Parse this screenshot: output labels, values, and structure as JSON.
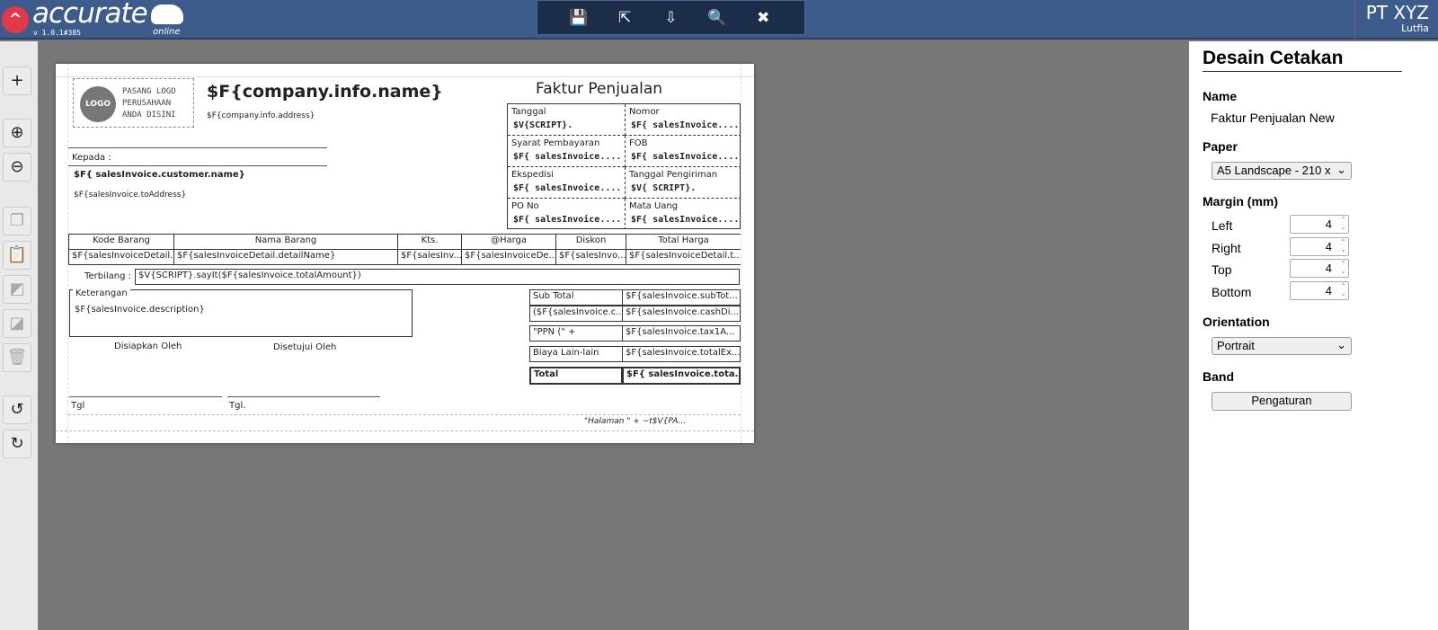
{
  "app": {
    "brand": "accurate",
    "version": "v 1.0.1#385",
    "online": "online",
    "company": "PT XYZ",
    "user": "Lutfia",
    "accent": "#3d5c8c"
  },
  "toolbar": [
    {
      "icon": "save-icon",
      "disabled": true,
      "glyph": "💾"
    },
    {
      "icon": "export-icon",
      "glyph": "⇱"
    },
    {
      "icon": "import-icon",
      "glyph": "⇩"
    },
    {
      "icon": "preview-icon",
      "glyph": "🔍"
    },
    {
      "icon": "close-icon",
      "glyph": "✖"
    }
  ],
  "left_tools": [
    {
      "icon": "add-icon",
      "glyph": "+"
    },
    {
      "icon": "zoom-in-icon",
      "glyph": "⊕"
    },
    {
      "icon": "zoom-out-icon",
      "glyph": "⊖"
    },
    {
      "icon": "copy-icon",
      "glyph": "❐"
    },
    {
      "icon": "paste-icon",
      "glyph": "📋"
    },
    {
      "icon": "bring-front-icon",
      "glyph": "◩"
    },
    {
      "icon": "send-back-icon",
      "glyph": "◪"
    },
    {
      "icon": "delete-icon",
      "glyph": "🗑"
    },
    {
      "icon": "undo-icon",
      "glyph": "↺"
    },
    {
      "icon": "redo-icon",
      "glyph": "↻"
    }
  ],
  "invoice": {
    "logo": "LOGO",
    "logo_text": [
      "PASANG LOGO",
      "PERUSAHAAN",
      "ANDA DISINI"
    ],
    "company_name": "$F{company.info.name}",
    "company_address": "$F{company.info.address}",
    "title": "Faktur Penjualan",
    "kepada": "Kepada :",
    "customer": "$F{ salesInvoice.customer.name}",
    "to_address": "$F{salesInvoice.toAddress}",
    "info": [
      [
        "Tanggal",
        "$V{SCRIPT}."
      ],
      [
        "Nomor",
        "$F{ salesInvoice...."
      ],
      [
        "Syarat Pembayaran",
        "$F{ salesInvoice...."
      ],
      [
        "FOB",
        "$F{ salesInvoice...."
      ],
      [
        "Ekspedisi",
        "$F{ salesInvoice...."
      ],
      [
        "Tanggal Pengiriman",
        "$V{ SCRIPT}."
      ],
      [
        "PO No",
        "$F{ salesInvoice...."
      ],
      [
        "Mata Uang",
        "$F{ salesInvoice...."
      ]
    ],
    "columns": [
      "Kode Barang",
      "Nama Barang",
      "Kts.",
      "@Harga",
      "Diskon",
      "Total Harga"
    ],
    "row": [
      "$F{salesInvoiceDetail...",
      "$F{salesInvoiceDetail.detailName}",
      "$F{salesInv...",
      "$F{salesInvoiceDe...",
      "$F{salesInvo...",
      "$F{salesInvoiceDetail.t..."
    ],
    "terbilang_label": "Terbilang :",
    "terbilang": "$V{SCRIPT}.sayIt($F{salesInvoice.totalAmount})",
    "keterangan_label": "Keterangan",
    "keterangan": "$F{salesInvoice.description}",
    "disiapkan": "Disiapkan Oleh",
    "disetujui": "Disetujui Oleh",
    "tgl1": "Tgl",
    "tgl2": "Tgl.",
    "totals": [
      [
        "Sub Total",
        "$F{salesInvoice.subTot..."
      ],
      [
        "($F{salesInvoice.c...",
        "$F{salesInvoice.cashDi..."
      ],
      [
        "\"PPN (\" +",
        "$F{salesInvoice.tax1A..."
      ],
      [
        "Biaya Lain-lain",
        "$F{salesInvoice.totalEx..."
      ],
      [
        "Total",
        "$F{ salesInvoice.tota..."
      ]
    ],
    "footer": "\"Halaman \" +  ~t$V{PA..."
  },
  "panel": {
    "title": "Desain Cetakan",
    "name_label": "Name",
    "name": "Faktur Penjualan New",
    "paper_label": "Paper",
    "paper": "A5 Landscape - 210 x",
    "margin_label": "Margin (mm)",
    "margins": [
      {
        "label": "Left",
        "value": "4"
      },
      {
        "label": "Right",
        "value": "4"
      },
      {
        "label": "Top",
        "value": "4"
      },
      {
        "label": "Bottom",
        "value": "4"
      }
    ],
    "orientation_label": "Orientation",
    "orientation": "Portrait",
    "band_label": "Band",
    "band_button": "Pengaturan"
  }
}
